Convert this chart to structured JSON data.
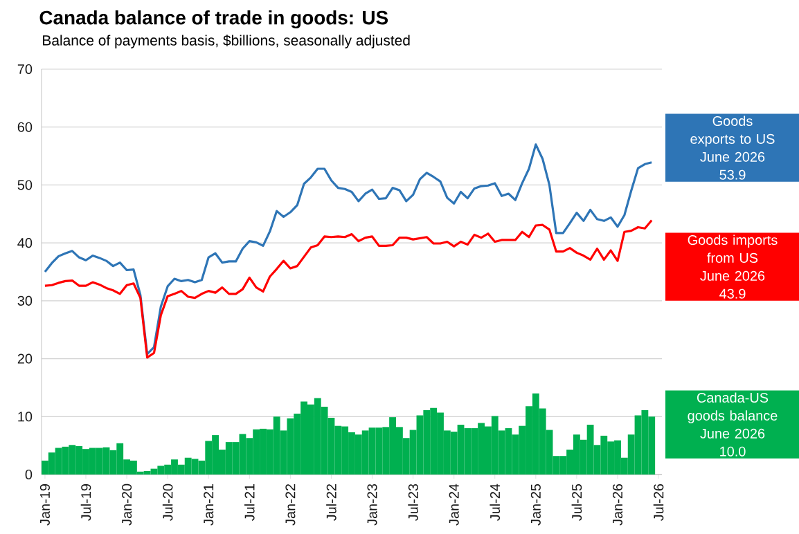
{
  "chart_data": {
    "type": "line",
    "title": "Canada balance of trade in goods: US",
    "subtitle": "Balance of payments basis, $billions, seasonally adjusted",
    "categories": [
      "Jan-19",
      null,
      null,
      null,
      null,
      null,
      "Jul-19",
      null,
      null,
      null,
      null,
      null,
      "Jan-20",
      null,
      null,
      null,
      null,
      null,
      "Jul-20",
      null,
      null,
      null,
      null,
      null,
      "Jan-21",
      null,
      null,
      null,
      null,
      null,
      "Jul-21",
      null,
      null,
      null,
      null,
      null,
      "Jan-22",
      null,
      null,
      null,
      null,
      null,
      "Jul-22",
      null,
      null,
      null,
      null,
      null,
      "Jan-23",
      null,
      null,
      null,
      null,
      null,
      "Jul-23",
      null,
      null,
      null,
      null,
      null,
      "Jan-24",
      null,
      null,
      null,
      null,
      null,
      "Jul-24",
      null,
      null,
      null,
      null,
      null,
      "Jan-25",
      null,
      null,
      null,
      null,
      null,
      "Jul-25",
      null,
      null,
      null,
      null,
      null,
      "Jan-26",
      null,
      null,
      null,
      null,
      null,
      "Jul-26"
    ],
    "series": [
      {
        "name": "Goods exports to US",
        "color": "#2e75b6",
        "values": [
          35.0,
          36.5,
          37.7,
          38.2,
          38.6,
          37.5,
          37.0,
          37.8,
          37.4,
          36.9,
          36.0,
          36.6,
          35.3,
          35.4,
          31.0,
          20.8,
          22.0,
          29.0,
          32.5,
          33.8,
          33.4,
          33.6,
          33.2,
          33.6,
          37.5,
          38.2,
          36.6,
          36.8,
          36.8,
          39.0,
          40.3,
          40.1,
          39.5,
          42.0,
          45.5,
          44.5,
          45.3,
          46.5,
          50.2,
          51.3,
          52.8,
          52.8,
          50.8,
          49.5,
          49.3,
          48.8,
          47.2,
          48.5,
          49.2,
          47.6,
          47.7,
          49.5,
          49.1,
          47.2,
          48.3,
          51.0,
          52.1,
          51.4,
          50.6,
          47.8,
          46.8,
          48.8,
          47.7,
          49.4,
          49.8,
          49.9,
          50.3,
          48.1,
          48.5,
          47.4,
          50.3,
          52.8,
          57.0,
          54.5,
          50.0,
          41.7,
          41.7,
          43.4,
          45.2,
          43.8,
          45.7,
          44.1,
          43.8,
          44.4,
          42.8,
          44.8,
          49.0,
          52.9,
          53.6,
          53.9,
          null
        ]
      },
      {
        "name": "Goods imports from US",
        "color": "#ff0000",
        "values": [
          32.6,
          32.7,
          33.1,
          33.4,
          33.5,
          32.6,
          32.6,
          33.2,
          32.8,
          32.2,
          31.8,
          31.2,
          32.7,
          33.0,
          30.5,
          20.2,
          21.0,
          27.5,
          30.8,
          31.2,
          31.7,
          30.7,
          30.5,
          31.2,
          31.7,
          31.4,
          32.3,
          31.2,
          31.2,
          32.0,
          34.0,
          32.3,
          31.6,
          34.2,
          35.5,
          36.9,
          35.6,
          36.0,
          37.6,
          39.2,
          39.6,
          41.1,
          41.0,
          41.1,
          41.0,
          41.5,
          40.3,
          40.9,
          41.1,
          39.5,
          39.5,
          39.6,
          40.9,
          40.9,
          40.6,
          40.8,
          41.0,
          39.9,
          39.9,
          40.2,
          39.4,
          40.2,
          39.7,
          41.4,
          40.9,
          41.6,
          40.2,
          40.5,
          40.5,
          40.5,
          41.9,
          41.0,
          43.0,
          43.1,
          42.3,
          38.5,
          38.5,
          39.1,
          38.3,
          37.8,
          37.1,
          39.0,
          37.1,
          38.7,
          36.9,
          41.9,
          42.1,
          42.7,
          42.5,
          43.9,
          null
        ]
      },
      {
        "name": "Canada-US goods balance",
        "type": "bar",
        "color": "#00b050",
        "values": [
          2.4,
          3.8,
          4.6,
          4.8,
          5.1,
          4.9,
          4.4,
          4.6,
          4.6,
          4.7,
          4.2,
          5.4,
          2.6,
          2.4,
          0.5,
          0.6,
          1.0,
          1.5,
          1.7,
          2.6,
          1.7,
          2.9,
          2.7,
          2.4,
          5.8,
          6.8,
          4.3,
          5.6,
          5.6,
          7.0,
          6.3,
          7.8,
          7.9,
          7.8,
          10.0,
          7.6,
          9.7,
          10.5,
          12.6,
          12.1,
          13.2,
          11.7,
          9.8,
          8.4,
          8.3,
          7.3,
          6.9,
          7.6,
          8.1,
          8.1,
          8.2,
          9.9,
          8.2,
          6.3,
          7.7,
          10.2,
          11.1,
          11.5,
          10.7,
          7.6,
          7.4,
          8.6,
          8.0,
          8.0,
          8.9,
          8.3,
          10.1,
          7.6,
          8.0,
          6.9,
          8.4,
          11.8,
          14.0,
          11.4,
          7.7,
          3.2,
          3.2,
          4.3,
          6.9,
          6.0,
          8.6,
          5.1,
          6.7,
          5.7,
          5.9,
          2.9,
          6.9,
          10.2,
          11.1,
          10.0,
          null
        ]
      }
    ],
    "annotations": [
      "June 2026",
      "53.9",
      "June 2026",
      "43.9",
      "June 2026",
      "10.0"
    ],
    "ylim": [
      0,
      70
    ],
    "yticks": [
      0,
      10,
      20,
      30,
      40,
      50,
      60,
      70
    ],
    "grid": "y"
  }
}
